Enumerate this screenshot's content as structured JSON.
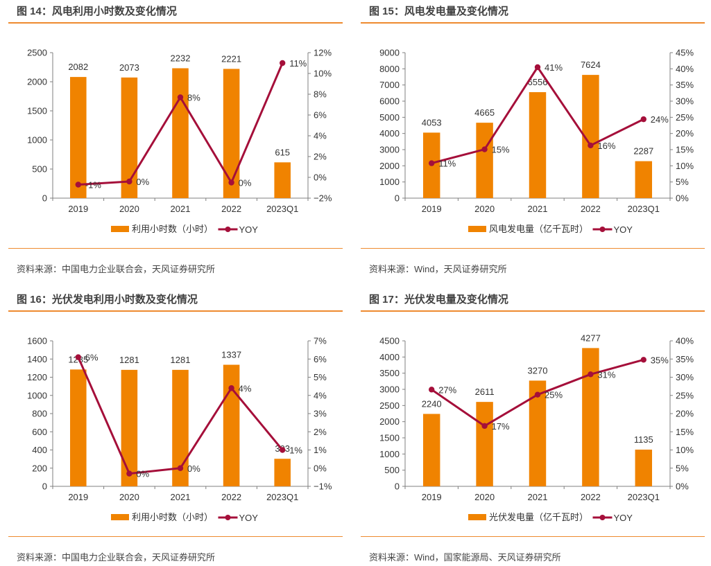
{
  "colors": {
    "bar": "#f08300",
    "line": "#a50f3a",
    "rule": "#ee8a2e",
    "axis": "#7f7f7f"
  },
  "panels": [
    {
      "title": "图 14：风电利用小时数及变化情况",
      "source": "资料来源：中国电力企业联合会，天风证券研究所"
    },
    {
      "title": "图 15：风电发电量及变化情况",
      "source": "资料来源：Wind，天风证券研究所"
    },
    {
      "title": "图 16：光伏发电利用小时数及变化情况",
      "source": "资料来源：中国电力企业联合会，天风证券研究所"
    },
    {
      "title": "图 17：光伏发电量及变化情况",
      "source": "资料来源：Wind，国家能源局、天风证券研究所"
    }
  ],
  "chart_data": [
    {
      "type": "bar",
      "title": "风电利用小时数及变化情况",
      "categories": [
        "2019",
        "2020",
        "2021",
        "2022",
        "2023Q1"
      ],
      "series": [
        {
          "name": "利用小时数（小时）",
          "kind": "bar",
          "axis": "left",
          "values": [
            2082,
            2073,
            2232,
            2221,
            615
          ],
          "labels": [
            "2082",
            "2073",
            "2232",
            "2221",
            "615"
          ]
        },
        {
          "name": "YOY",
          "kind": "line",
          "axis": "right",
          "values": [
            -0.7,
            -0.4,
            7.7,
            -0.5,
            11.0
          ],
          "labels": [
            "-1%",
            "0%",
            "8%",
            "0%",
            "11%"
          ]
        }
      ],
      "left_axis": {
        "min": 0,
        "max": 2500,
        "step": 500,
        "ticks": [
          "0",
          "500",
          "1000",
          "1500",
          "2000",
          "2500"
        ]
      },
      "right_axis": {
        "min": -2,
        "max": 12,
        "step": 2,
        "ticks": [
          "−2%",
          "0%",
          "2%",
          "4%",
          "6%",
          "8%",
          "10%",
          "12%"
        ]
      },
      "legend": "bottom",
      "grid": false
    },
    {
      "type": "bar",
      "title": "风电发电量及变化情况",
      "categories": [
        "2019",
        "2020",
        "2021",
        "2022",
        "2023Q1"
      ],
      "series": [
        {
          "name": "风电发电量（亿千瓦时）",
          "kind": "bar",
          "axis": "left",
          "values": [
            4053,
            4665,
            6556,
            7624,
            2287
          ],
          "labels": [
            "4053",
            "4665",
            "6556",
            "7624",
            "2287"
          ]
        },
        {
          "name": "YOY",
          "kind": "line",
          "axis": "right",
          "values": [
            10.8,
            15.1,
            40.5,
            16.3,
            24.4
          ],
          "labels": [
            "11%",
            "15%",
            "41%",
            "16%",
            "24%"
          ]
        }
      ],
      "left_axis": {
        "min": 0,
        "max": 9000,
        "step": 1000,
        "ticks": [
          "0",
          "1000",
          "2000",
          "3000",
          "4000",
          "5000",
          "6000",
          "7000",
          "8000",
          "9000"
        ]
      },
      "right_axis": {
        "min": 0,
        "max": 45,
        "step": 5,
        "ticks": [
          "0%",
          "5%",
          "10%",
          "15%",
          "20%",
          "25%",
          "30%",
          "35%",
          "40%",
          "45%"
        ]
      },
      "legend": "bottom",
      "grid": false
    },
    {
      "type": "bar",
      "title": "光伏发电利用小时数及变化情况",
      "categories": [
        "2019",
        "2020",
        "2021",
        "2022",
        "2023Q1"
      ],
      "series": [
        {
          "name": "利用小时数（小时）",
          "kind": "bar",
          "axis": "left",
          "values": [
            1285,
            1281,
            1281,
            1337,
            303
          ],
          "labels": [
            "1285",
            "1281",
            "1281",
            "1337",
            "303"
          ]
        },
        {
          "name": "YOY",
          "kind": "line",
          "axis": "right",
          "values": [
            6.1,
            -0.3,
            0.0,
            4.4,
            1.0
          ],
          "labels": [
            "6%",
            "0%",
            "0%",
            "4%",
            "1%"
          ]
        }
      ],
      "left_axis": {
        "min": 0,
        "max": 1600,
        "step": 200,
        "ticks": [
          "0",
          "200",
          "400",
          "600",
          "800",
          "1000",
          "1200",
          "1400",
          "1600"
        ]
      },
      "right_axis": {
        "min": -1,
        "max": 7,
        "step": 1,
        "ticks": [
          "−1%",
          "0%",
          "1%",
          "2%",
          "3%",
          "4%",
          "5%",
          "6%",
          "7%"
        ]
      },
      "legend": "bottom",
      "grid": false
    },
    {
      "type": "bar",
      "title": "光伏发电量及变化情况",
      "categories": [
        "2019",
        "2020",
        "2021",
        "2022",
        "2023Q1"
      ],
      "series": [
        {
          "name": "光伏发电量（亿千瓦时）",
          "kind": "bar",
          "axis": "left",
          "values": [
            2240,
            2611,
            3270,
            4277,
            1135
          ],
          "labels": [
            "2240",
            "2611",
            "3270",
            "4277",
            "1135"
          ]
        },
        {
          "name": "YOY",
          "kind": "line",
          "axis": "right",
          "values": [
            26.6,
            16.6,
            25.2,
            30.8,
            34.8
          ],
          "labels": [
            "27%",
            "17%",
            "25%",
            "31%",
            "35%"
          ]
        }
      ],
      "left_axis": {
        "min": 0,
        "max": 4500,
        "step": 500,
        "ticks": [
          "0",
          "500",
          "1000",
          "1500",
          "2000",
          "2500",
          "3000",
          "3500",
          "4000",
          "4500"
        ]
      },
      "right_axis": {
        "min": 0,
        "max": 40,
        "step": 5,
        "ticks": [
          "0%",
          "5%",
          "10%",
          "15%",
          "20%",
          "25%",
          "30%",
          "35%",
          "40%"
        ]
      },
      "legend": "bottom",
      "grid": false
    }
  ]
}
